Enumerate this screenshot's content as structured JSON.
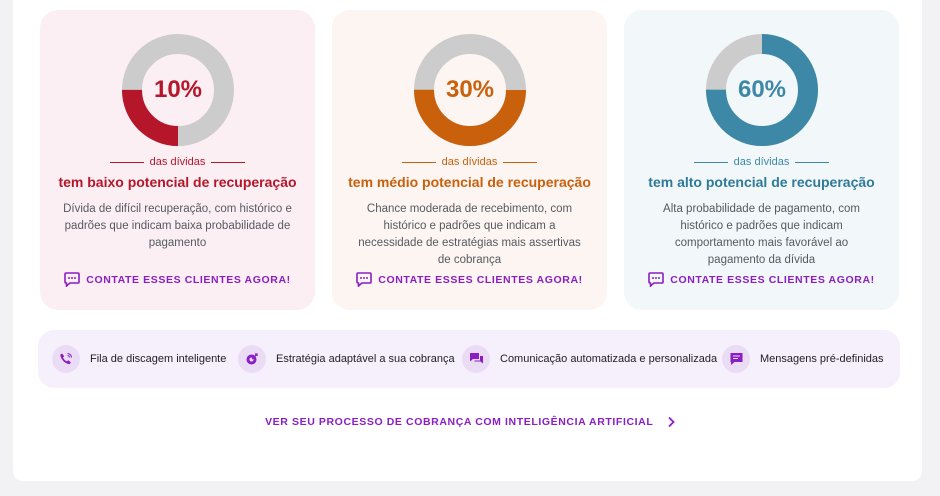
{
  "colors": {
    "low": "#b5162a",
    "medium": "#c9600c",
    "high": "#3d88a6",
    "cta": "#8a1ec2",
    "track": "#cccccc"
  },
  "cards": [
    {
      "percent_label": "10%",
      "percent": 0.25,
      "sublabel": "das dívidas",
      "title": "tem baixo potencial de recuperação",
      "description": "Dívida de difícil recuperação, com histórico e padrões que indicam baixa probabilidade de pagamento",
      "cta_label": "CONTATE ESSES CLIENTES AGORA!",
      "cta_icon": "chat-icon"
    },
    {
      "percent_label": "30%",
      "percent": 0.5,
      "sublabel": "das dívidas",
      "title": "tem médio potencial de recuperação",
      "description": "Chance moderada de recebimento, com histórico e padrões que indicam a necessidade de estratégias mais assertivas de cobrança",
      "cta_label": "CONTATE ESSES CLIENTES AGORA!",
      "cta_icon": "chat-icon"
    },
    {
      "percent_label": "60%",
      "percent": 0.75,
      "sublabel": "das dívidas",
      "title": "tem alto potencial de recuperação",
      "description": "Alta probabilidade de pagamento, com histórico e padrões que indicam comportamento mais favorável ao pagamento da dívida",
      "cta_label": "CONTATE ESSES CLIENTES AGORA!",
      "cta_icon": "chat-icon"
    }
  ],
  "features": [
    {
      "label": "Fila de discagem inteligente",
      "icon": "phone-icon"
    },
    {
      "label": "Estratégia adaptável a sua cobrança",
      "icon": "target-icon"
    },
    {
      "label": "Comunicação automatizada e personalizada",
      "icon": "chat-bubbles-icon"
    },
    {
      "label": "Mensagens pré-definidas",
      "icon": "message-icon"
    }
  ],
  "footer_link": {
    "label": "VER SEU PROCESSO DE COBRANÇA COM INTELIGÊNCIA ARTIFICIAL",
    "icon": "chevron-right-icon"
  }
}
